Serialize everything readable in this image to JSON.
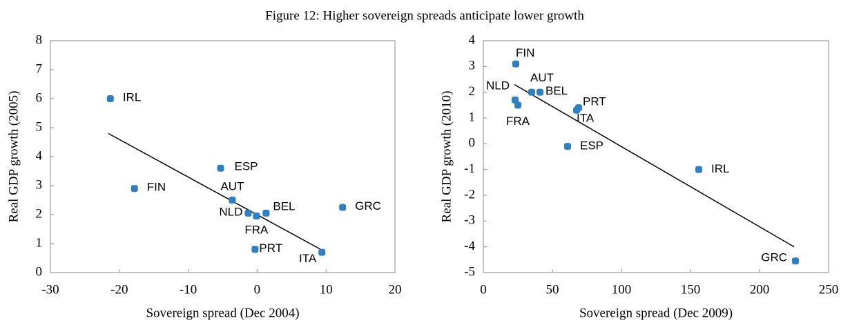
{
  "title": "Figure 12: Higher sovereign spreads anticipate lower growth",
  "chart_data": [
    {
      "type": "scatter",
      "color": "#2f7fc1",
      "xlabel": "Sovereign spread (Dec 2004)",
      "ylabel": "Real GDP growth (2005)",
      "xlim": [
        -30,
        20
      ],
      "xticks": [
        -30,
        -20,
        -10,
        0,
        10,
        20
      ],
      "ylim": [
        0,
        8
      ],
      "yticks": [
        0,
        1,
        2,
        3,
        4,
        5,
        6,
        7,
        8
      ],
      "labels": [
        "IRL",
        "FIN",
        "ESP",
        "AUT",
        "NLD",
        "FRA",
        "BEL",
        "GRC",
        "PRT",
        "ITA"
      ],
      "x": [
        -21.3,
        -17.8,
        -5.3,
        -3.6,
        -1.3,
        -0.1,
        1.3,
        12.4,
        -0.3,
        9.4
      ],
      "values": [
        6.0,
        2.9,
        3.6,
        2.5,
        2.05,
        1.95,
        2.05,
        2.25,
        0.8,
        0.7
      ],
      "trendline": {
        "x": [
          -21.6,
          9.6
        ],
        "values": [
          4.8,
          0.75
        ]
      }
    },
    {
      "type": "scatter",
      "color": "#2f7fc1",
      "xlabel": "Sovereign spread (Dec 2009)",
      "ylabel": "Real GDP growth (2010)",
      "xlim": [
        0,
        250
      ],
      "xticks": [
        0,
        50,
        100,
        150,
        200,
        250
      ],
      "ylim": [
        -5,
        4
      ],
      "yticks": [
        -5,
        -4,
        -3,
        -2,
        -1,
        0,
        1,
        2,
        3,
        4
      ],
      "labels": [
        "FIN",
        "AUT",
        "BEL",
        "NLD",
        "FRA",
        "PRT",
        "ITA",
        "ESP",
        "IRL",
        "GRC"
      ],
      "x": [
        23.5,
        35,
        41,
        23,
        25,
        69,
        67.5,
        61,
        156,
        226
      ],
      "values": [
        3.1,
        2.0,
        2.0,
        1.7,
        1.5,
        1.4,
        1.3,
        -0.1,
        -1.0,
        -4.55
      ],
      "trendline": {
        "x": [
          22.5,
          225
        ],
        "values": [
          2.3,
          -4.0
        ]
      }
    }
  ]
}
